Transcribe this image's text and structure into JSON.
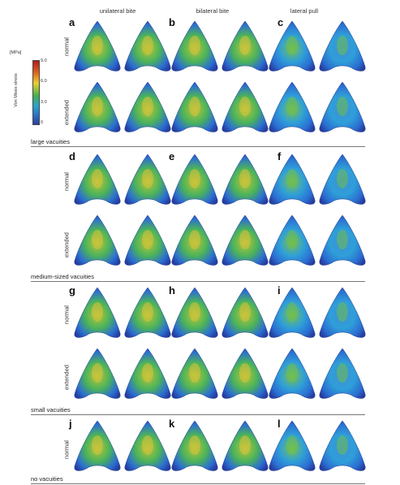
{
  "column_headers": [
    "unilateral bite",
    "bilateral bite",
    "lateral pull"
  ],
  "row_labels": {
    "normal": "normal",
    "extended": "extended"
  },
  "groups": [
    {
      "name": "large vacuities",
      "letters": [
        "a",
        "b",
        "c"
      ]
    },
    {
      "name": "medium-sized vacuities",
      "letters": [
        "d",
        "e",
        "f"
      ]
    },
    {
      "name": "small  vacuities",
      "letters": [
        "g",
        "h",
        "i"
      ]
    },
    {
      "name": "no vacuities",
      "letters": [
        "j",
        "k",
        "l"
      ]
    }
  ],
  "scale_bar": {
    "unit": "[MPa]",
    "title": "Von Mises stress",
    "ticks": [
      "9.0",
      "6.0",
      "3.0",
      "0"
    ],
    "colors": [
      "#b31b1b",
      "#e8d033",
      "#43b04a",
      "#2a7fd0",
      "#2c3f9e"
    ]
  }
}
